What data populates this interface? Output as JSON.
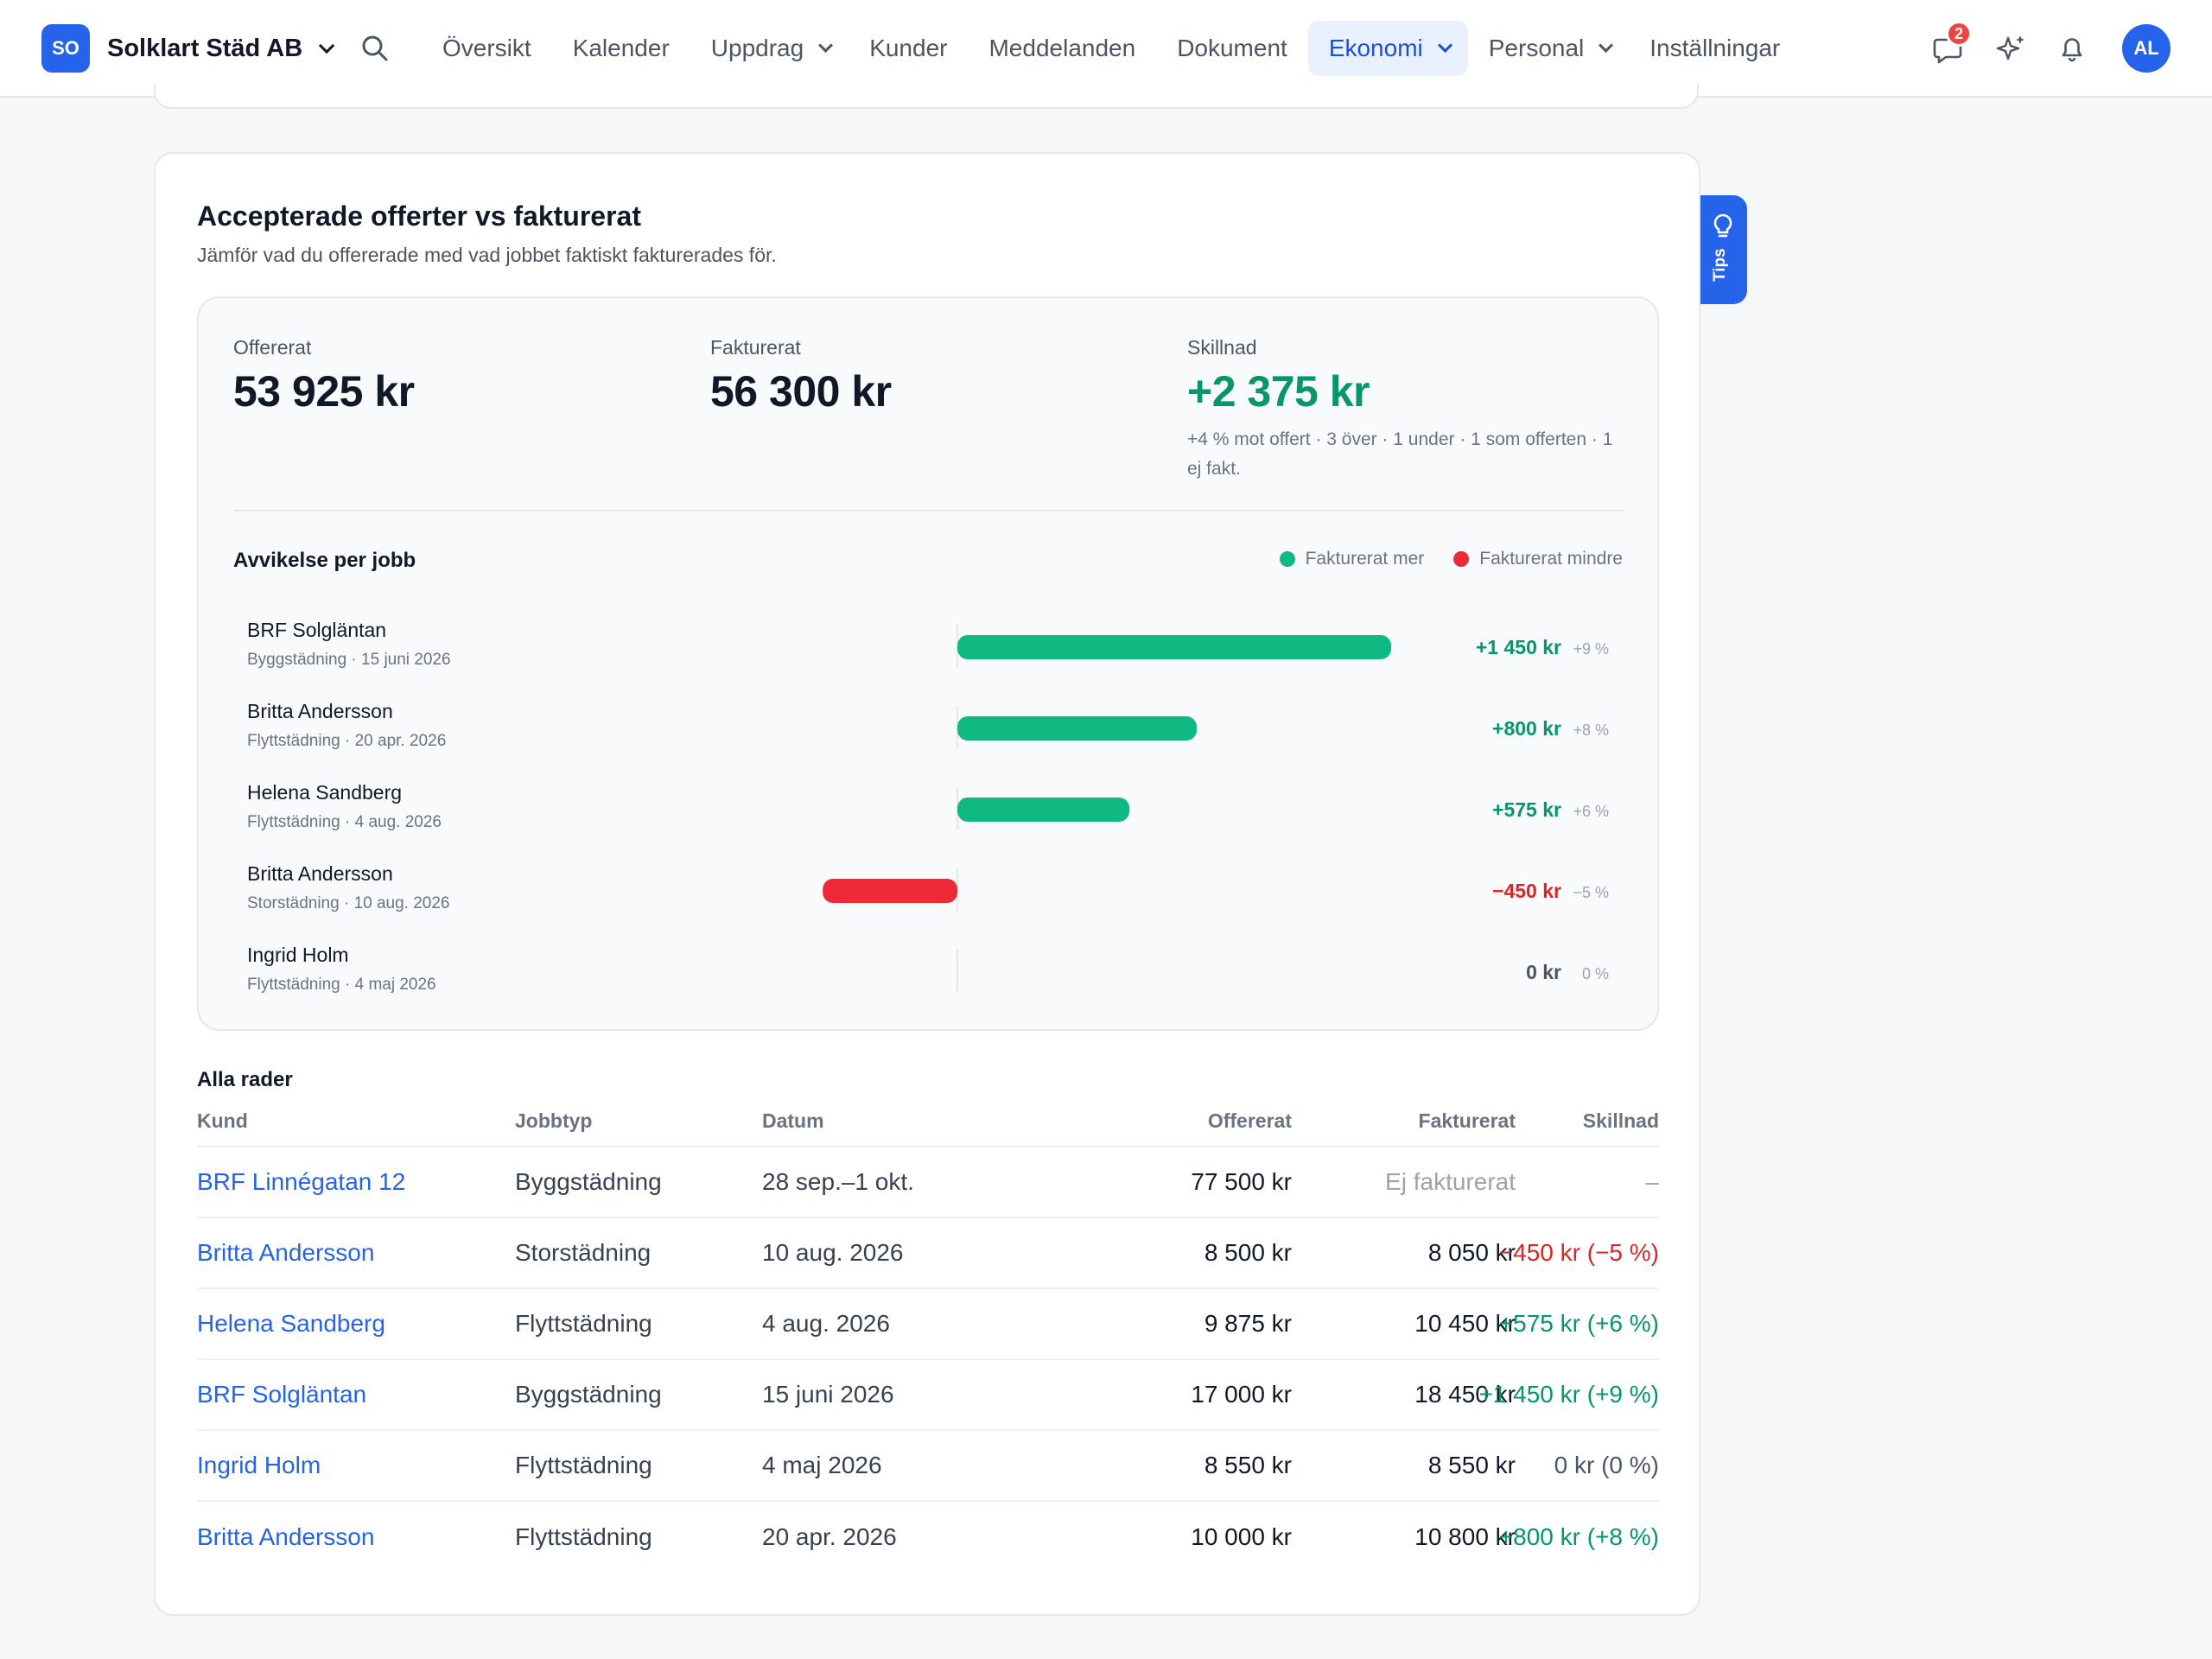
{
  "topbar": {
    "logo_initials": "SO",
    "company": "Solklart Städ AB",
    "nav": [
      {
        "label": "Översikt",
        "dropdown": false,
        "active": false
      },
      {
        "label": "Kalender",
        "dropdown": false,
        "active": false
      },
      {
        "label": "Uppdrag",
        "dropdown": true,
        "active": false
      },
      {
        "label": "Kunder",
        "dropdown": false,
        "active": false
      },
      {
        "label": "Meddelanden",
        "dropdown": false,
        "active": false
      },
      {
        "label": "Dokument",
        "dropdown": false,
        "active": false
      },
      {
        "label": "Ekonomi",
        "dropdown": true,
        "active": true
      },
      {
        "label": "Personal",
        "dropdown": true,
        "active": false
      },
      {
        "label": "Inställningar",
        "dropdown": false,
        "active": false
      }
    ],
    "messages_badge": "2",
    "avatar_initials": "AL",
    "icons": [
      "search-icon",
      "chat-icon",
      "sparkle-icon",
      "bell-icon"
    ]
  },
  "tips": {
    "label": "Tips"
  },
  "card": {
    "title": "Accepterade offerter vs fakturerat",
    "subtitle": "Jämför vad du offererade med vad jobbet faktiskt fakturerades för."
  },
  "summary": {
    "offered_label": "Offererat",
    "offered_value": "53 925 kr",
    "invoiced_label": "Fakturerat",
    "invoiced_value": "56 300 kr",
    "diff_label": "Skillnad",
    "diff_value": "+2 375 kr",
    "diff_note": "+4 % mot offert · 3 över · 1 under · 1 som offerten · 1 ej fakt."
  },
  "colors": {
    "positive": "#10b981",
    "negative": "#ef2a37",
    "positive_text": "#059669",
    "negative_text": "#dc2626",
    "accent": "#2563eb"
  },
  "chart_data": {
    "type": "bar",
    "title": "Avvikelse per jobb",
    "legend": [
      "Fakturerat mer",
      "Fakturerat mindre"
    ],
    "legend_position": "top-right",
    "orientation": "horizontal",
    "rows": [
      {
        "name": "BRF Solgläntan",
        "meta": "Byggstädning · 15 juni 2026",
        "value": 1450,
        "label": "+1 450 kr",
        "pct": "+9 %"
      },
      {
        "name": "Britta Andersson",
        "meta": "Flyttstädning · 20 apr. 2026",
        "value": 800,
        "label": "+800 kr",
        "pct": "+8 %"
      },
      {
        "name": "Helena Sandberg",
        "meta": "Flyttstädning · 4 aug. 2026",
        "value": 575,
        "label": "+575 kr",
        "pct": "+6 %"
      },
      {
        "name": "Britta Andersson",
        "meta": "Storstädning · 10 aug. 2026",
        "value": -450,
        "label": "−450 kr",
        "pct": "−5 %"
      },
      {
        "name": "Ingrid Holm",
        "meta": "Flyttstädning · 4 maj 2026",
        "value": 0,
        "label": "0 kr",
        "pct": "0 %"
      }
    ],
    "xlim": [
      -900,
      1450
    ]
  },
  "table": {
    "title": "Alla rader",
    "columns": [
      "Kund",
      "Jobbtyp",
      "Datum",
      "Offererat",
      "Fakturerat",
      "Skillnad"
    ],
    "rows": [
      {
        "kund": "BRF Linnégatan 12",
        "jobbtyp": "Byggstädning",
        "datum": "28 sep.–1 okt.",
        "offererat": "77 500 kr",
        "fakturerat": "Ej fakturerat",
        "skillnad": "–",
        "tone": "none"
      },
      {
        "kund": "Britta Andersson",
        "jobbtyp": "Storstädning",
        "datum": "10 aug. 2026",
        "offererat": "8 500 kr",
        "fakturerat": "8 050 kr",
        "skillnad": "−450 kr (−5 %)",
        "tone": "neg"
      },
      {
        "kund": "Helena Sandberg",
        "jobbtyp": "Flyttstädning",
        "datum": "4 aug. 2026",
        "offererat": "9 875 kr",
        "fakturerat": "10 450 kr",
        "skillnad": "+575 kr (+6 %)",
        "tone": "pos"
      },
      {
        "kund": "BRF Solgläntan",
        "jobbtyp": "Byggstädning",
        "datum": "15 juni 2026",
        "offererat": "17 000 kr",
        "fakturerat": "18 450 kr",
        "skillnad": "+1 450 kr (+9 %)",
        "tone": "pos"
      },
      {
        "kund": "Ingrid Holm",
        "jobbtyp": "Flyttstädning",
        "datum": "4 maj 2026",
        "offererat": "8 550 kr",
        "fakturerat": "8 550 kr",
        "skillnad": "0 kr (0 %)",
        "tone": "zero"
      },
      {
        "kund": "Britta Andersson",
        "jobbtyp": "Flyttstädning",
        "datum": "20 apr. 2026",
        "offererat": "10 000 kr",
        "fakturerat": "10 800 kr",
        "skillnad": "+800 kr (+8 %)",
        "tone": "pos"
      }
    ]
  }
}
